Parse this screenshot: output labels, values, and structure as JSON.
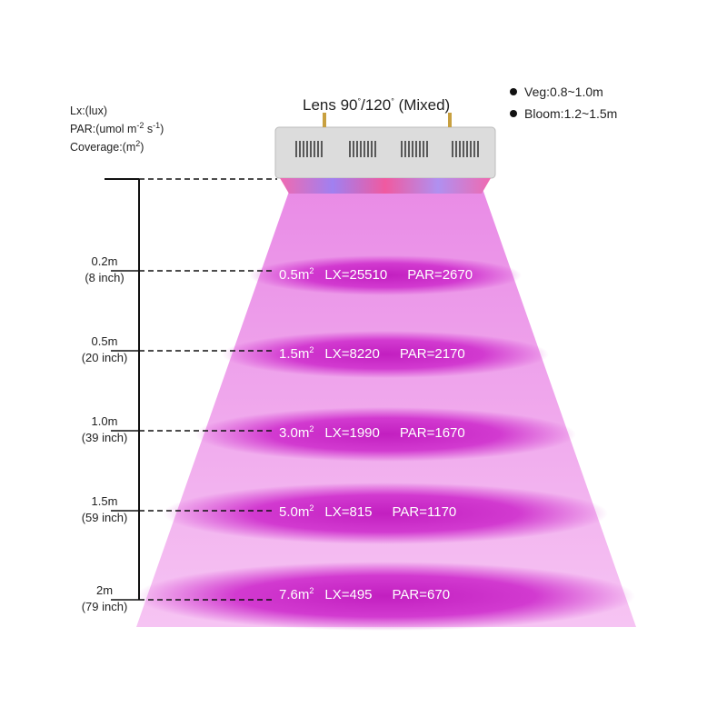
{
  "legend": {
    "lx": "Lx:(lux)",
    "par": "PAR:(umol m",
    "par_exp1": "-2",
    "par_mid": " s",
    "par_exp2": "-1",
    "par_end": ")",
    "coverage": "Coverage:(m",
    "coverage_exp": "2",
    "coverage_end": ")"
  },
  "title": {
    "prefix": "Lens 90",
    "deg": "°",
    "mid": "/120",
    "suffix": "(Mixed)"
  },
  "stages": [
    {
      "label": "Veg:0.8~1.0m"
    },
    {
      "label": "Bloom:1.2~1.5m"
    }
  ],
  "levels": [
    {
      "height": "0.2m",
      "inch": "(8 inch)",
      "coverage": "0.5m",
      "lx": "LX=25510",
      "par": "PAR=2670"
    },
    {
      "height": "0.5m",
      "inch": "(20 inch)",
      "coverage": "1.5m",
      "lx": "LX=8220",
      "par": "PAR=2170"
    },
    {
      "height": "1.0m",
      "inch": "(39 inch)",
      "coverage": "3.0m",
      "lx": "LX=1990",
      "par": "PAR=1670"
    },
    {
      "height": "1.5m",
      "inch": "(59 inch)",
      "coverage": "5.0m",
      "lx": "LX=815",
      "par": "PAR=1170"
    },
    {
      "height": "2m",
      "inch": "(79 inch)",
      "coverage": "7.6m",
      "lx": "LX=495",
      "par": "PAR=670"
    }
  ],
  "coverage_exp": "2",
  "colors": {
    "light": "#f2a6ee",
    "spot": "#d23ad0",
    "fixture": "#d9d9d9"
  }
}
